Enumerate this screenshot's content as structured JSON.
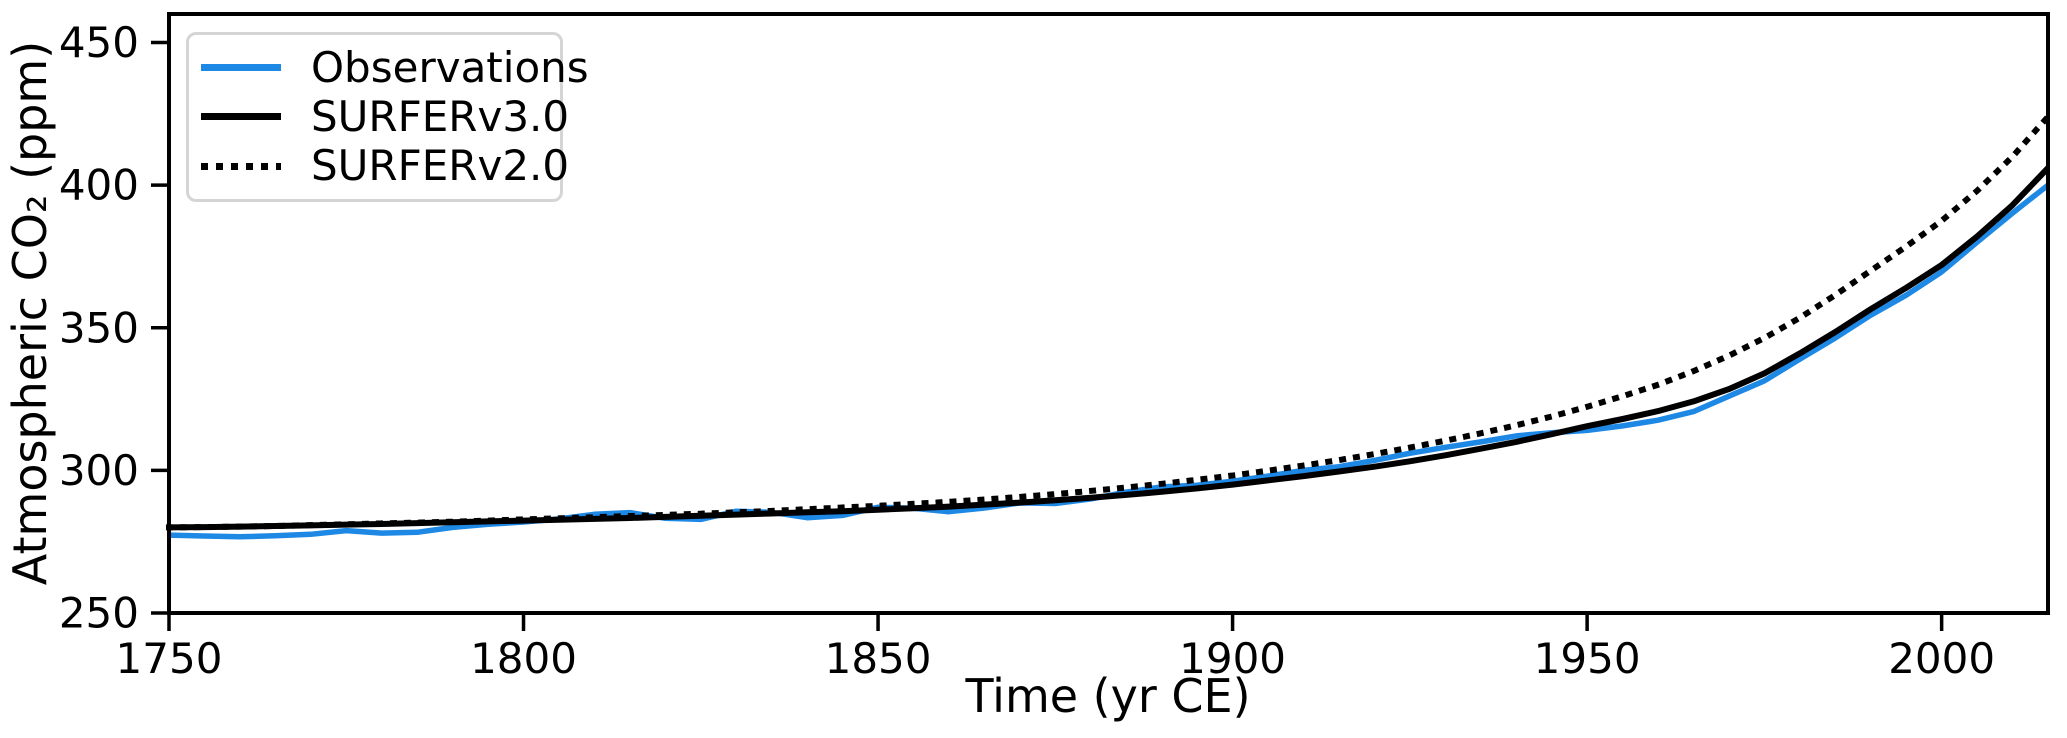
{
  "figure": {
    "kind": "matplotlib-style line chart",
    "background": "#ffffff"
  },
  "chart_data": {
    "type": "line",
    "title": "",
    "xlabel": "Time (yr CE)",
    "ylabel": "Atmospheric CO₂ (ppm)",
    "xlim": [
      1750,
      2015
    ],
    "ylim": [
      250,
      460
    ],
    "x_ticks": [
      1750,
      1800,
      1850,
      1900,
      1950,
      2000
    ],
    "y_ticks": [
      250,
      300,
      350,
      400,
      450
    ],
    "grid": false,
    "legend_position": "upper left",
    "axis_color": "#000000",
    "x": [
      1750,
      1755,
      1760,
      1765,
      1770,
      1775,
      1780,
      1785,
      1790,
      1795,
      1800,
      1805,
      1810,
      1815,
      1820,
      1825,
      1830,
      1835,
      1840,
      1845,
      1850,
      1855,
      1860,
      1865,
      1870,
      1875,
      1880,
      1885,
      1890,
      1895,
      1900,
      1905,
      1910,
      1915,
      1920,
      1925,
      1930,
      1935,
      1940,
      1945,
      1950,
      1955,
      1960,
      1965,
      1970,
      1975,
      1980,
      1985,
      1990,
      1995,
      2000,
      2005,
      2010,
      2015
    ],
    "series": [
      {
        "name": "Observations",
        "color": "#1E88E5",
        "line_style": "solid",
        "line_width": 5.5,
        "values": [
          277.3,
          277.0,
          276.7,
          277.1,
          277.6,
          278.9,
          278.0,
          278.3,
          280.0,
          281.1,
          281.9,
          283.0,
          284.6,
          285.2,
          283.2,
          282.8,
          285.7,
          285.3,
          283.4,
          284.2,
          287.1,
          286.7,
          285.5,
          286.8,
          288.6,
          288.4,
          290.0,
          292.4,
          294.2,
          294.8,
          296.2,
          298.0,
          300.0,
          301.3,
          303.5,
          306.0,
          308.1,
          310.0,
          312.1,
          313.2,
          314.0,
          315.6,
          317.6,
          320.6,
          326.0,
          331.4,
          339.0,
          346.4,
          354.4,
          361.4,
          369.6,
          380.0,
          390.2,
          400.0
        ]
      },
      {
        "name": "SURFERv3.0",
        "color": "#000000",
        "line_style": "solid",
        "line_width": 6,
        "values": [
          280.0,
          280.1,
          280.3,
          280.5,
          280.7,
          281.0,
          281.2,
          281.5,
          281.8,
          282.1,
          282.4,
          282.7,
          283.0,
          283.3,
          283.7,
          284.1,
          284.5,
          284.9,
          285.3,
          285.7,
          286.2,
          286.7,
          287.3,
          288.0,
          288.7,
          289.5,
          290.4,
          291.4,
          292.5,
          293.7,
          295.0,
          296.5,
          298.0,
          299.6,
          301.3,
          303.2,
          305.3,
          307.6,
          310.0,
          312.7,
          315.5,
          318.0,
          320.8,
          324.2,
          328.5,
          334.0,
          341.0,
          348.5,
          356.5,
          364.0,
          372.0,
          382.0,
          393.0,
          406.0
        ]
      },
      {
        "name": "SURFERv2.0",
        "color": "#000000",
        "line_style": "dotted",
        "line_width": 6,
        "values": [
          280.0,
          280.1,
          280.3,
          280.5,
          280.8,
          281.1,
          281.4,
          281.7,
          282.0,
          282.4,
          282.8,
          283.2,
          283.6,
          284.0,
          284.4,
          284.8,
          285.3,
          285.8,
          286.4,
          287.0,
          287.6,
          288.3,
          289.0,
          289.8,
          290.7,
          291.7,
          292.8,
          294.0,
          295.3,
          296.7,
          298.2,
          299.9,
          301.7,
          303.6,
          305.7,
          308.0,
          310.4,
          313.0,
          315.8,
          318.9,
          322.3,
          326.0,
          330.0,
          334.8,
          340.2,
          346.4,
          353.5,
          361.5,
          370.0,
          378.5,
          387.5,
          398.0,
          410.0,
          424.0
        ]
      }
    ]
  },
  "legend": {
    "items": [
      {
        "label": "Observations"
      },
      {
        "label": "SURFERv3.0"
      },
      {
        "label": "SURFERv2.0"
      }
    ]
  }
}
